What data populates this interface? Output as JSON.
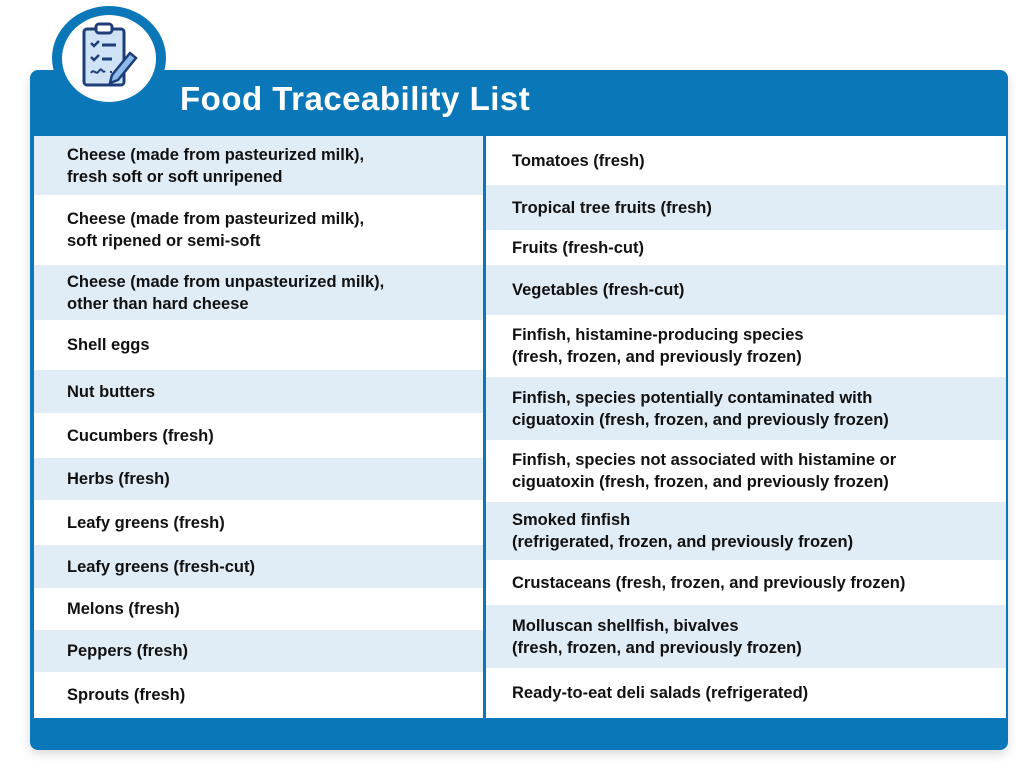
{
  "title": "Food Traceability List",
  "left_items": [
    "Cheese (made from pasteurized milk),\nfresh soft or soft unripened",
    "Cheese (made from pasteurized milk),\nsoft ripened or semi-soft",
    "Cheese (made from unpasteurized milk),\nother than hard cheese",
    "Shell eggs",
    "Nut butters",
    "Cucumbers (fresh)",
    "Herbs (fresh)",
    "Leafy greens (fresh)",
    "Leafy greens (fresh-cut)",
    "Melons (fresh)",
    "Peppers (fresh)",
    "Sprouts (fresh)"
  ],
  "right_items": [
    "Tomatoes (fresh)",
    "Tropical tree fruits (fresh)",
    "Fruits (fresh-cut)",
    "Vegetables (fresh-cut)",
    "Finfish, histamine-producing species\n(fresh, frozen, and previously frozen)",
    "Finfish, species potentially contaminated with\nciguatoxin (fresh, frozen, and previously frozen)",
    "Finfish, species not associated with histamine or\nciguatoxin (fresh, frozen, and previously frozen)",
    "Smoked finfish\n(refrigerated, frozen, and previously frozen)",
    "Crustaceans (fresh, frozen, and previously frozen)",
    "Molluscan shellfish, bivalves\n(fresh, frozen, and previously frozen)",
    "Ready-to-eat deli salads (refrigerated)"
  ],
  "colors": {
    "brand": "#0a78b8",
    "stripe": "#e0ecf6"
  },
  "icon": "clipboard-checklist-icon"
}
